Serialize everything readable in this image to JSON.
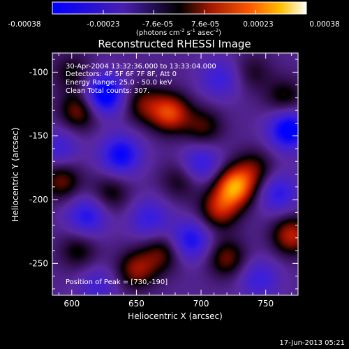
{
  "colorbar": {
    "ticks": [
      "-0.00038",
      "-0.00023",
      "-7.6e-05",
      "7.6e-05",
      "0.00023",
      "0.00038"
    ],
    "unit_main": "(photons cm",
    "unit_exp1": "-2",
    "unit_mid": " s",
    "unit_exp2": "-1",
    "unit_tail": " asec",
    "unit_exp3": "-2",
    "unit_close": ")"
  },
  "chart_data": {
    "type": "heatmap",
    "title": "Reconstructed RHESSI Image",
    "xlabel": "Heliocentric X (arcsec)",
    "ylabel": "Heliocentric Y (arcsec)",
    "xlim": [
      585,
      775
    ],
    "ylim": [
      -275,
      -85
    ],
    "xticks": [
      600,
      650,
      700,
      750
    ],
    "yticks": [
      -100,
      -150,
      -200,
      -250
    ],
    "color_scale": "red-temperature (blue negative, black zero, red/yellow/white positive)",
    "vmin": -0.00038,
    "vmax": 0.00038,
    "peak": [
      730,
      -190
    ],
    "annotations": [
      "30-Apr-2004 13:32:36.000 to 13:33:04.000",
      "Detectors: 4F 5F 6F 7F 8F, Att 0",
      "Energy Range: 25.0 - 50.0 keV",
      "Clean    Total counts: 307.",
      "Position of Peak = [730,-190]"
    ],
    "blobs": [
      {
        "x": 726,
        "y": -190,
        "amp": 0.00036
      },
      {
        "x": 714,
        "y": -208,
        "amp": 0.00022
      },
      {
        "x": 741,
        "y": -176,
        "amp": 0.00015
      },
      {
        "x": 676,
        "y": -132,
        "amp": 0.00028
      },
      {
        "x": 655,
        "y": -125,
        "amp": 0.00016
      },
      {
        "x": 606,
        "y": -130,
        "amp": 0.0002
      },
      {
        "x": 592,
        "y": -185,
        "amp": 0.00018
      },
      {
        "x": 650,
        "y": -255,
        "amp": 0.0002
      },
      {
        "x": 670,
        "y": -242,
        "amp": 0.00016
      },
      {
        "x": 720,
        "y": -246,
        "amp": 0.00018
      },
      {
        "x": 770,
        "y": -228,
        "amp": 0.00024
      },
      {
        "x": 702,
        "y": -143,
        "amp": 0.00015
      },
      {
        "x": 630,
        "y": -195,
        "amp": 0.00013
      },
      {
        "x": 605,
        "y": -240,
        "amp": 0.00013
      },
      {
        "x": 765,
        "y": -120,
        "amp": 0.00014
      },
      {
        "x": 684,
        "y": -185,
        "amp": 0.00012
      },
      {
        "x": 740,
        "y": -100,
        "amp": 0.0001
      },
      {
        "x": 600,
        "y": -100,
        "amp": 0.00012
      },
      {
        "x": 625,
        "y": -118,
        "amp": -0.00032
      },
      {
        "x": 638,
        "y": -165,
        "amp": -0.00025
      },
      {
        "x": 700,
        "y": -172,
        "amp": -0.00018
      },
      {
        "x": 612,
        "y": -213,
        "amp": -0.0002
      },
      {
        "x": 692,
        "y": -232,
        "amp": -0.00022
      },
      {
        "x": 768,
        "y": -145,
        "amp": -0.0003
      },
      {
        "x": 760,
        "y": -195,
        "amp": -0.00018
      },
      {
        "x": 660,
        "y": -215,
        "amp": -0.00016
      },
      {
        "x": 745,
        "y": -262,
        "amp": -0.00015
      },
      {
        "x": 715,
        "y": -105,
        "amp": -0.00015
      },
      {
        "x": 590,
        "y": -160,
        "amp": -0.00014
      },
      {
        "x": 620,
        "y": -268,
        "amp": -0.00012
      }
    ]
  },
  "footer": {
    "date": "17-Jun-2013 05:21"
  }
}
